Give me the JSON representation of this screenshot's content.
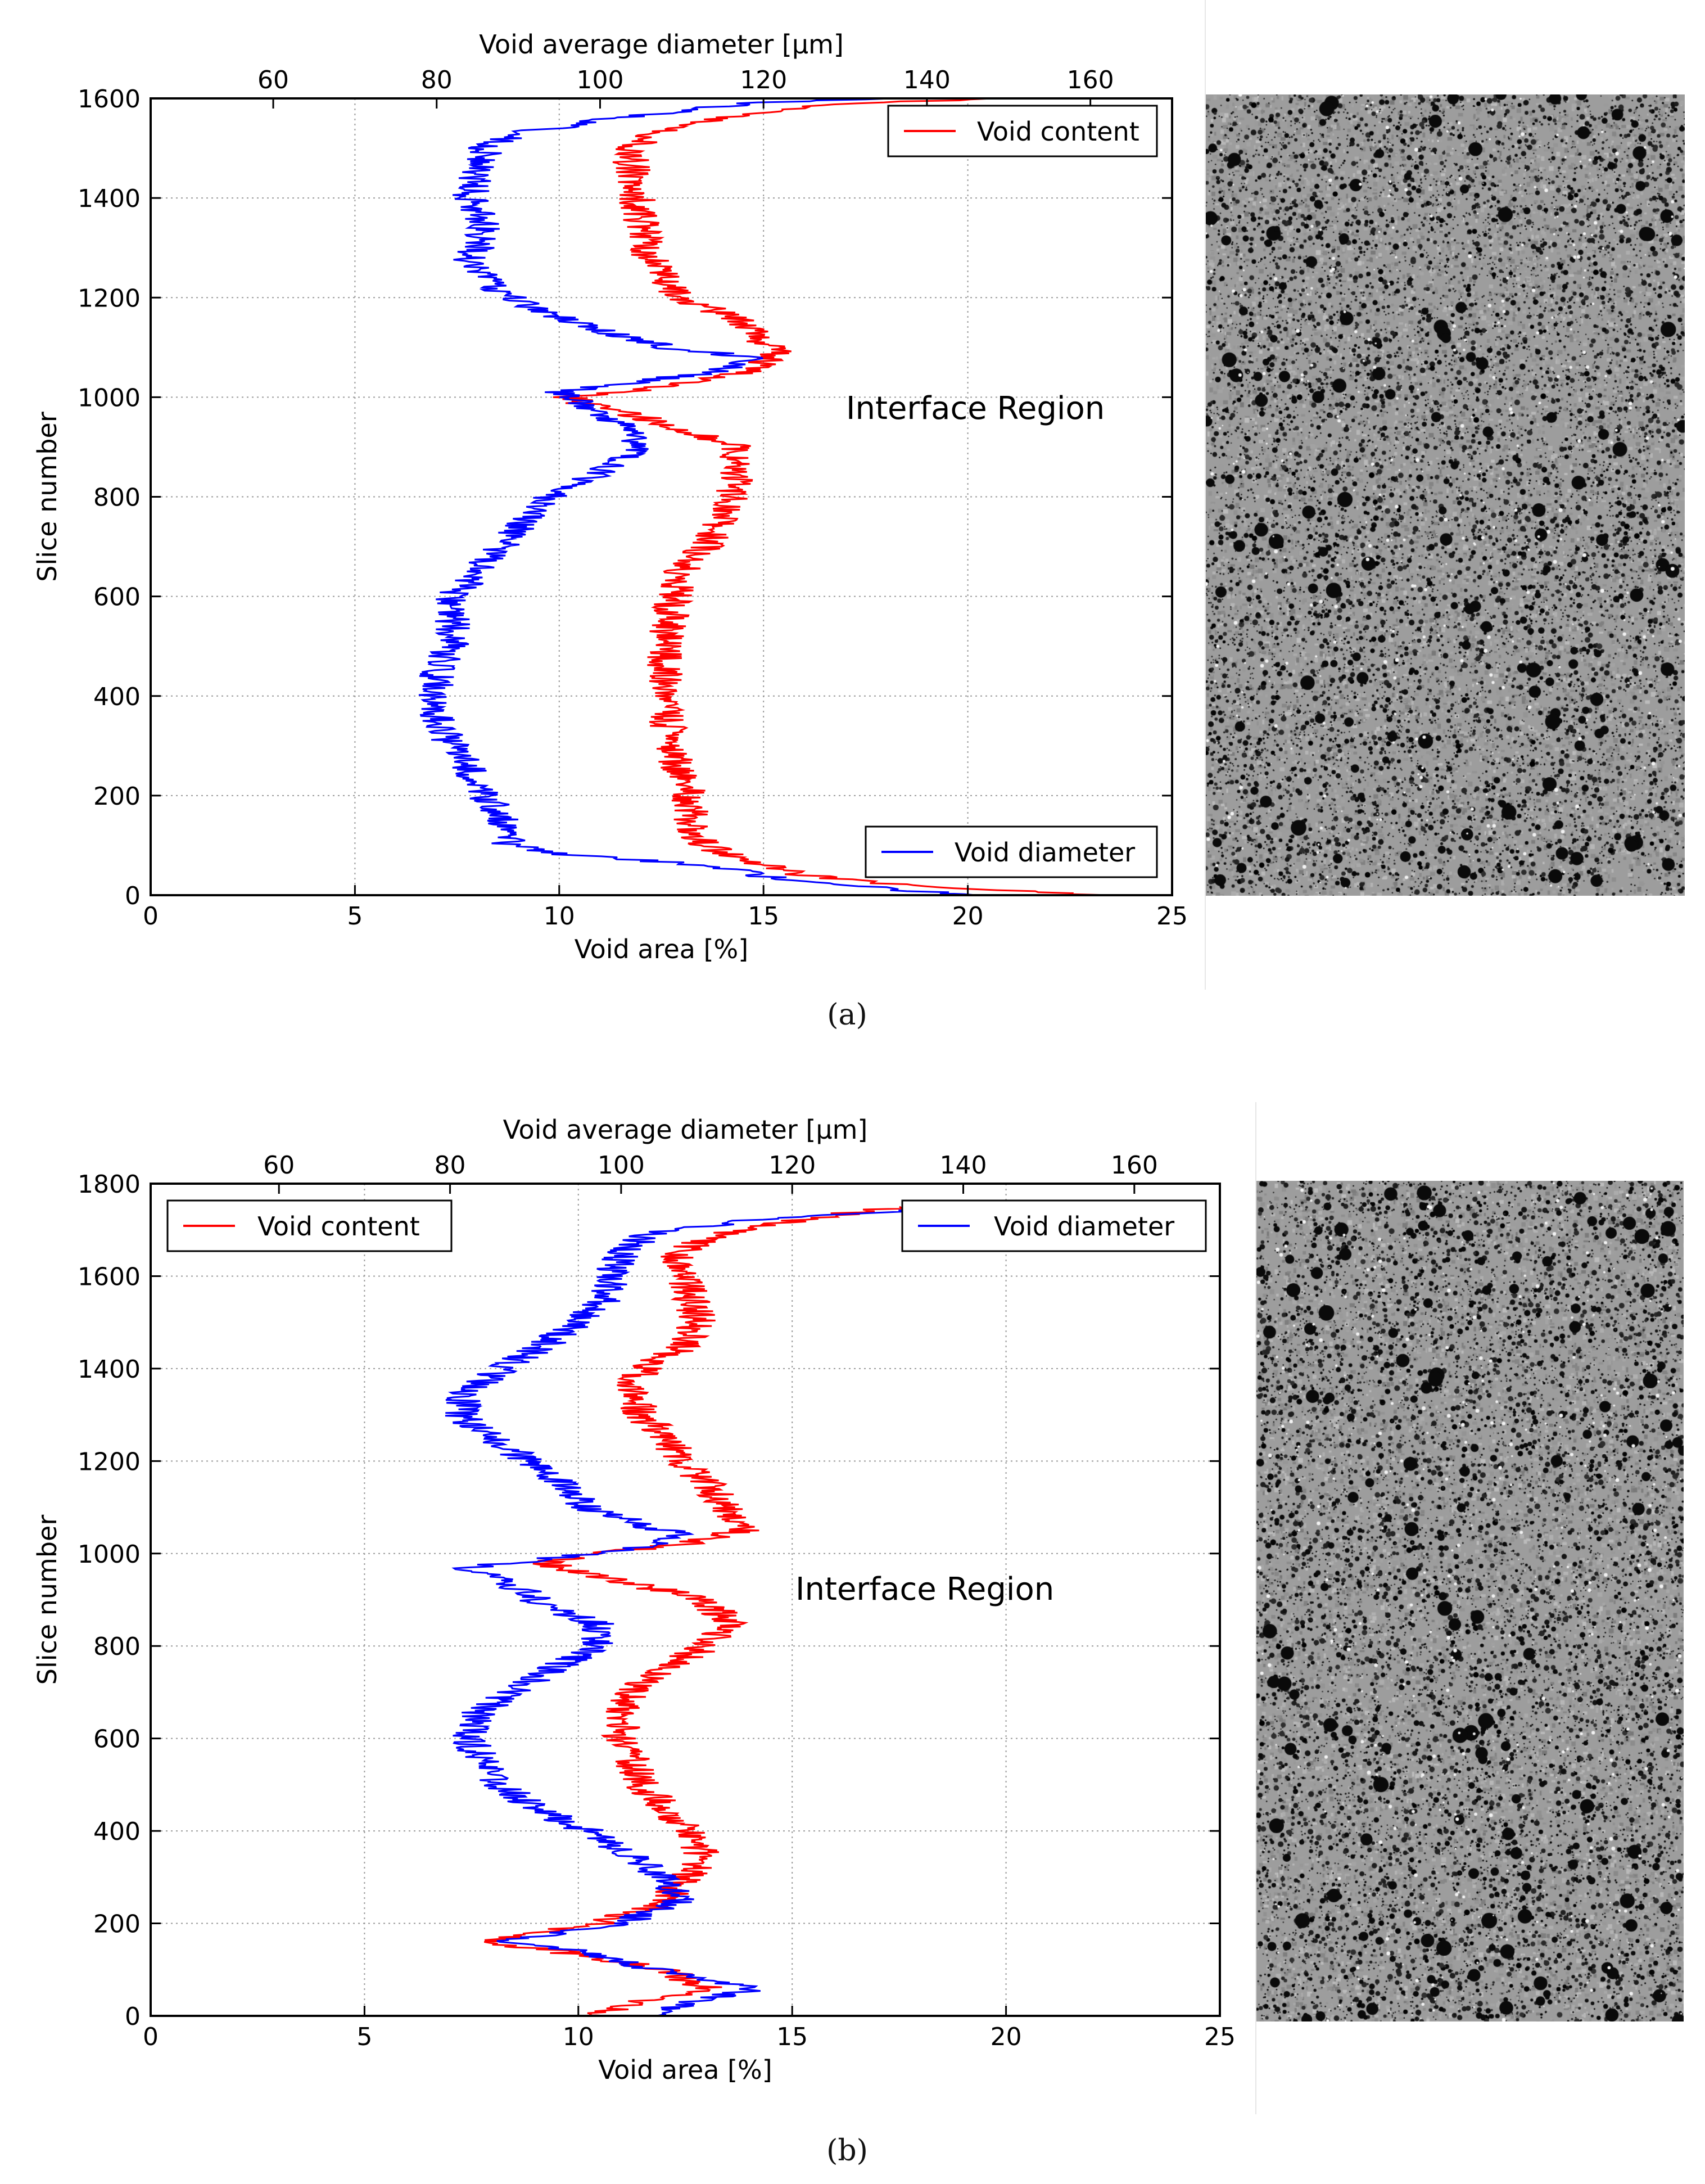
{
  "panels": [
    {
      "id": "a",
      "caption": "(a)",
      "annotation": "Interface Region",
      "legend_content": "Void content",
      "legend_diameter": "Void diameter",
      "legend_content_position": "top-right",
      "legend_diameter_position": "bottom-right"
    },
    {
      "id": "b",
      "caption": "(b)",
      "annotation": "Interface Region",
      "legend_content": "Void content",
      "legend_diameter": "Void diameter",
      "legend_content_position": "top-left",
      "legend_diameter_position": "top-right"
    }
  ],
  "colors": {
    "content": "#ff0000",
    "diameter": "#0000ff",
    "grid": "#9a9a9a"
  },
  "chart_data": [
    {
      "type": "line",
      "panel": "a",
      "title": "",
      "xlabel": "Void area [%]",
      "x2label": "Void average diameter [μm]",
      "ylabel": "Slice number",
      "xlim": [
        0,
        25
      ],
      "x2lim": [
        45,
        170
      ],
      "ylim": [
        0,
        1600
      ],
      "xticks": [
        "0",
        "5",
        "10",
        "15",
        "20",
        "25"
      ],
      "x2ticks": [
        "60",
        "80",
        "100",
        "120",
        "140",
        "160"
      ],
      "yticks": [
        "0",
        "200",
        "400",
        "600",
        "800",
        "1000",
        "1200",
        "1400",
        "1600"
      ],
      "grid": true,
      "series": [
        {
          "name": "Void content",
          "axis": "bottom",
          "points": [
            [
              23.3,
              0
            ],
            [
              18.5,
              20
            ],
            [
              16.0,
              40
            ],
            [
              14.6,
              70
            ],
            [
              13.5,
              100
            ],
            [
              13.2,
              150
            ],
            [
              13.2,
              200
            ],
            [
              12.9,
              250
            ],
            [
              12.7,
              300
            ],
            [
              12.6,
              400
            ],
            [
              12.6,
              500
            ],
            [
              12.8,
              600
            ],
            [
              13.0,
              650
            ],
            [
              13.6,
              700
            ],
            [
              14.2,
              800
            ],
            [
              14.4,
              900
            ],
            [
              13.6,
              920
            ],
            [
              12.0,
              960
            ],
            [
              10.5,
              990
            ],
            [
              10.2,
              1000
            ],
            [
              12.5,
              1020
            ],
            [
              14.5,
              1050
            ],
            [
              15.3,
              1080
            ],
            [
              15.2,
              1100
            ],
            [
              14.5,
              1150
            ],
            [
              13.0,
              1200
            ],
            [
              12.5,
              1250
            ],
            [
              12.1,
              1300
            ],
            [
              11.9,
              1400
            ],
            [
              11.7,
              1500
            ],
            [
              12.6,
              1540
            ],
            [
              14.7,
              1570
            ],
            [
              17.0,
              1590
            ],
            [
              21.0,
              1600
            ]
          ]
        },
        {
          "name": "Void diameter",
          "axis": "top",
          "points": [
            [
              145,
              0
            ],
            [
              123,
              30
            ],
            [
              113,
              60
            ],
            [
              97,
              80
            ],
            [
              89,
              100
            ],
            [
              88,
              150
            ],
            [
              86,
              200
            ],
            [
              84,
              250
            ],
            [
              82,
              300
            ],
            [
              80,
              350
            ],
            [
              80,
              420
            ],
            [
              80,
              450
            ],
            [
              82,
              500
            ],
            [
              82,
              600
            ],
            [
              85,
              650
            ],
            [
              88,
              700
            ],
            [
              94,
              800
            ],
            [
              100,
              850
            ],
            [
              105,
              900
            ],
            [
              102,
              950
            ],
            [
              98,
              990
            ],
            [
              95,
              1010
            ],
            [
              104,
              1030
            ],
            [
              114,
              1050
            ],
            [
              119,
              1080
            ],
            [
              108,
              1100
            ],
            [
              97,
              1150
            ],
            [
              92,
              1180
            ],
            [
              88,
              1210
            ],
            [
              86,
              1250
            ],
            [
              84,
              1270
            ],
            [
              85,
              1300
            ],
            [
              86,
              1350
            ],
            [
              84,
              1400
            ],
            [
              85,
              1450
            ],
            [
              86,
              1500
            ],
            [
              90,
              1530
            ],
            [
              102,
              1560
            ],
            [
              118,
              1590
            ],
            [
              135,
              1600
            ]
          ]
        }
      ]
    },
    {
      "type": "line",
      "panel": "b",
      "title": "",
      "xlabel": "Void area [%]",
      "x2label": "Void average diameter [μm]",
      "ylabel": "Slice number",
      "xlim": [
        0,
        25
      ],
      "x2lim": [
        45,
        170
      ],
      "ylim": [
        0,
        1800
      ],
      "xticks": [
        "0",
        "5",
        "10",
        "15",
        "20",
        "25"
      ],
      "x2ticks": [
        "60",
        "80",
        "100",
        "120",
        "140",
        "160"
      ],
      "yticks": [
        "0",
        "200",
        "400",
        "600",
        "800",
        "1000",
        "1200",
        "1400",
        "1600",
        "1800"
      ],
      "grid": true,
      "series": [
        {
          "name": "Void content",
          "axis": "bottom",
          "points": [
            [
              10.4,
              0
            ],
            [
              11.5,
              30
            ],
            [
              13.0,
              60
            ],
            [
              12.0,
              100
            ],
            [
              9.5,
              140
            ],
            [
              7.8,
              160
            ],
            [
              9.0,
              180
            ],
            [
              10.5,
              200
            ],
            [
              11.5,
              230
            ],
            [
              12.0,
              250
            ],
            [
              12.6,
              300
            ],
            [
              12.9,
              350
            ],
            [
              12.5,
              400
            ],
            [
              12.0,
              450
            ],
            [
              11.5,
              500
            ],
            [
              11.0,
              600
            ],
            [
              11.0,
              650
            ],
            [
              11.2,
              700
            ],
            [
              12.0,
              750
            ],
            [
              13.0,
              800
            ],
            [
              13.5,
              850
            ],
            [
              13.0,
              900
            ],
            [
              11.5,
              930
            ],
            [
              10.0,
              960
            ],
            [
              9.2,
              980
            ],
            [
              10.5,
              1000
            ],
            [
              12.5,
              1020
            ],
            [
              13.8,
              1050
            ],
            [
              13.5,
              1100
            ],
            [
              13.0,
              1150
            ],
            [
              12.5,
              1200
            ],
            [
              12.0,
              1250
            ],
            [
              11.5,
              1300
            ],
            [
              11.2,
              1350
            ],
            [
              11.5,
              1400
            ],
            [
              12.5,
              1450
            ],
            [
              12.8,
              1500
            ],
            [
              12.5,
              1600
            ],
            [
              12.3,
              1650
            ],
            [
              13.2,
              1690
            ],
            [
              15.0,
              1720
            ],
            [
              17.5,
              1750
            ]
          ]
        },
        {
          "name": "Void diameter",
          "axis": "top",
          "points": [
            [
              103,
              0
            ],
            [
              108,
              30
            ],
            [
              116,
              60
            ],
            [
              108,
              80
            ],
            [
              104,
              100
            ],
            [
              96,
              140
            ],
            [
              86,
              160
            ],
            [
              93,
              180
            ],
            [
              100,
              200
            ],
            [
              104,
              230
            ],
            [
              107,
              250
            ],
            [
              105,
              300
            ],
            [
              101,
              350
            ],
            [
              96,
              400
            ],
            [
              90,
              450
            ],
            [
              86,
              500
            ],
            [
              82,
              600
            ],
            [
              83,
              650
            ],
            [
              87,
              700
            ],
            [
              92,
              750
            ],
            [
              97,
              800
            ],
            [
              97,
              850
            ],
            [
              92,
              880
            ],
            [
              90,
              900
            ],
            [
              86,
              950
            ],
            [
              82,
              970
            ],
            [
              92,
              990
            ],
            [
              102,
              1010
            ],
            [
              107,
              1040
            ],
            [
              103,
              1060
            ],
            [
              96,
              1100
            ],
            [
              93,
              1150
            ],
            [
              89,
              1200
            ],
            [
              85,
              1250
            ],
            [
              81,
              1300
            ],
            [
              82,
              1350
            ],
            [
              86,
              1400
            ],
            [
              91,
              1450
            ],
            [
              95,
              1500
            ],
            [
              98,
              1550
            ],
            [
              99,
              1600
            ],
            [
              100,
              1650
            ],
            [
              103,
              1690
            ],
            [
              115,
              1720
            ],
            [
              140,
              1750
            ]
          ]
        }
      ]
    }
  ]
}
